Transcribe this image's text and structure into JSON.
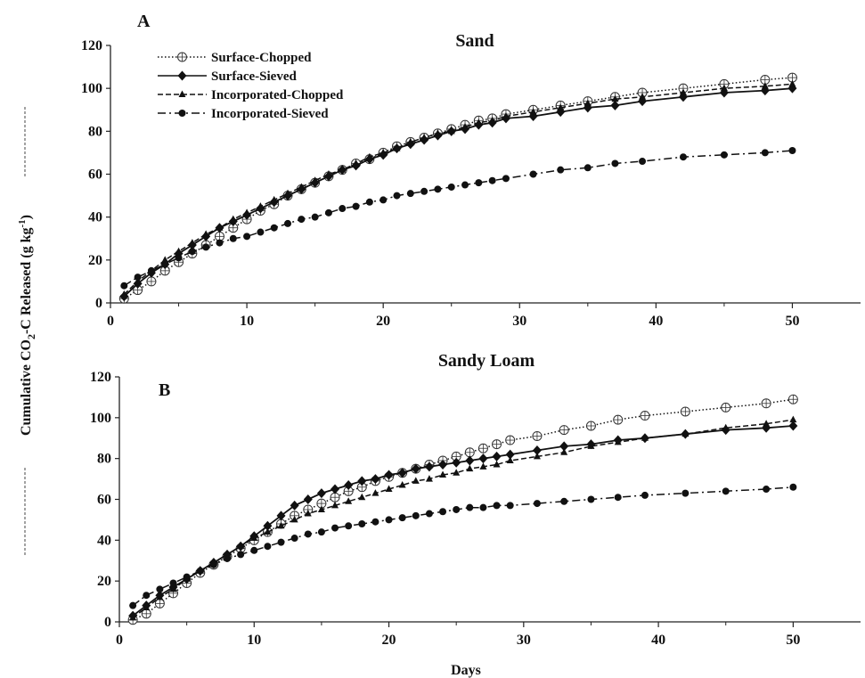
{
  "figure": {
    "ylabel": "Cumulative  CO2-C Released (g kg-1)",
    "ylabel_parts": {
      "pre": "Cumulative  CO",
      "sub": "2",
      "mid": "-C Released (g kg",
      "sup": "-1",
      "post": ")"
    },
    "xlabel": "Days",
    "colors": {
      "series": "#111111",
      "background": "#ffffff"
    }
  },
  "legend": {
    "placement": "top-left of panel A",
    "entries": [
      {
        "key": "surface_chopped",
        "label": "Surface-Chopped"
      },
      {
        "key": "surface_sieved",
        "label": "Surface-Sieved"
      },
      {
        "key": "incorporated_chopped",
        "label": "Incorporated-Chopped"
      },
      {
        "key": "incorporated_sieved",
        "label": "Incorporated-Sieved"
      }
    ]
  },
  "chart_data": [
    {
      "type": "line",
      "panel": "A",
      "title": "Sand",
      "xlabel": "Days",
      "ylabel": "Cumulative CO2-C Released (g kg-1)",
      "xlim": [
        0,
        55
      ],
      "ylim": [
        0,
        120
      ],
      "xticks": [
        0,
        10,
        20,
        30,
        40,
        50
      ],
      "yticks": [
        0,
        20,
        40,
        60,
        80,
        100,
        120
      ],
      "grid": false,
      "legend": "top-left",
      "series": [
        {
          "key": "surface_chopped",
          "name": "Surface-Chopped",
          "marker": "open-circle",
          "line": "dotted",
          "x": [
            1,
            2,
            3,
            4,
            5,
            6,
            7,
            8,
            9,
            10,
            11,
            12,
            13,
            14,
            15,
            16,
            17,
            18,
            19,
            20,
            21,
            22,
            23,
            24,
            25,
            26,
            27,
            28,
            29,
            31,
            33,
            35,
            37,
            39,
            42,
            45,
            48,
            50
          ],
          "y": [
            2,
            6,
            10,
            15,
            19,
            23,
            27,
            31,
            35,
            39,
            43,
            46,
            50,
            53,
            56,
            59,
            62,
            65,
            67,
            70,
            73,
            75,
            77,
            79,
            81,
            83,
            85,
            86,
            88,
            90,
            92,
            94,
            96,
            98,
            100,
            102,
            104,
            105
          ]
        },
        {
          "key": "surface_sieved",
          "name": "Surface-Sieved",
          "marker": "diamond",
          "line": "solid",
          "x": [
            1,
            2,
            3,
            4,
            5,
            6,
            7,
            8,
            9,
            10,
            11,
            12,
            13,
            14,
            15,
            16,
            17,
            18,
            19,
            20,
            21,
            22,
            23,
            24,
            25,
            26,
            27,
            28,
            29,
            31,
            33,
            35,
            37,
            39,
            42,
            45,
            48,
            50
          ],
          "y": [
            3,
            9,
            14,
            18,
            23,
            27,
            31,
            35,
            38,
            41,
            44,
            47,
            50,
            53,
            56,
            59,
            62,
            64,
            67,
            69,
            72,
            74,
            76,
            78,
            80,
            81,
            83,
            84,
            86,
            87,
            89,
            91,
            92,
            94,
            96,
            98,
            99,
            100
          ]
        },
        {
          "key": "incorporated_chopped",
          "name": "Incorporated-Chopped",
          "marker": "triangle",
          "line": "dashed",
          "x": [
            1,
            2,
            3,
            4,
            5,
            6,
            7,
            8,
            9,
            10,
            11,
            12,
            13,
            14,
            15,
            16,
            17,
            18,
            19,
            20,
            21,
            22,
            23,
            24,
            25,
            26,
            27,
            28,
            29,
            31,
            33,
            35,
            37,
            39,
            42,
            45,
            48,
            50
          ],
          "y": [
            4,
            10,
            15,
            20,
            24,
            28,
            32,
            35,
            39,
            42,
            45,
            48,
            51,
            54,
            57,
            60,
            62,
            65,
            68,
            70,
            72,
            75,
            77,
            79,
            80,
            82,
            84,
            85,
            87,
            89,
            91,
            93,
            95,
            96,
            98,
            100,
            101,
            102
          ]
        },
        {
          "key": "incorporated_sieved",
          "name": "Incorporated-Sieved",
          "marker": "filled-circle",
          "line": "dash-dot",
          "x": [
            1,
            2,
            3,
            4,
            5,
            6,
            7,
            8,
            9,
            10,
            11,
            12,
            13,
            14,
            15,
            16,
            17,
            18,
            19,
            20,
            21,
            22,
            23,
            24,
            25,
            26,
            27,
            28,
            29,
            31,
            33,
            35,
            37,
            39,
            42,
            45,
            48,
            50
          ],
          "y": [
            8,
            12,
            15,
            18,
            21,
            24,
            26,
            28,
            30,
            31,
            33,
            35,
            37,
            39,
            40,
            42,
            44,
            45,
            47,
            48,
            50,
            51,
            52,
            53,
            54,
            55,
            56,
            57,
            58,
            60,
            62,
            63,
            65,
            66,
            68,
            69,
            70,
            71
          ]
        }
      ]
    },
    {
      "type": "line",
      "panel": "B",
      "title": "Sandy Loam",
      "xlabel": "Days",
      "ylabel": "Cumulative CO2-C Released (g kg-1)",
      "xlim": [
        0,
        55
      ],
      "ylim": [
        0,
        120
      ],
      "xticks": [
        0,
        10,
        20,
        30,
        40,
        50
      ],
      "yticks": [
        0,
        20,
        40,
        60,
        80,
        100,
        120
      ],
      "grid": false,
      "series": [
        {
          "key": "surface_chopped",
          "name": "Surface-Chopped",
          "marker": "open-circle",
          "line": "dotted",
          "x": [
            1,
            2,
            3,
            4,
            5,
            6,
            7,
            8,
            9,
            10,
            11,
            12,
            13,
            14,
            15,
            16,
            17,
            18,
            19,
            20,
            21,
            22,
            23,
            24,
            25,
            26,
            27,
            28,
            29,
            31,
            33,
            35,
            37,
            39,
            42,
            45,
            48,
            50
          ],
          "y": [
            1,
            4,
            9,
            14,
            19,
            24,
            28,
            32,
            36,
            40,
            44,
            48,
            52,
            55,
            58,
            61,
            64,
            66,
            69,
            71,
            73,
            75,
            77,
            79,
            81,
            83,
            85,
            87,
            89,
            91,
            94,
            96,
            99,
            101,
            103,
            105,
            107,
            109
          ]
        },
        {
          "key": "surface_sieved",
          "name": "Surface-Sieved",
          "marker": "diamond",
          "line": "solid",
          "x": [
            1,
            2,
            3,
            4,
            5,
            6,
            7,
            8,
            9,
            10,
            11,
            12,
            13,
            14,
            15,
            16,
            17,
            18,
            19,
            20,
            21,
            22,
            23,
            24,
            25,
            26,
            27,
            28,
            29,
            31,
            33,
            35,
            37,
            39,
            42,
            45,
            48,
            50
          ],
          "y": [
            3,
            8,
            13,
            17,
            21,
            25,
            29,
            33,
            37,
            42,
            47,
            52,
            57,
            60,
            63,
            65,
            67,
            69,
            70,
            72,
            73,
            75,
            76,
            77,
            78,
            79,
            80,
            81,
            82,
            84,
            86,
            87,
            89,
            90,
            92,
            94,
            95,
            96
          ]
        },
        {
          "key": "incorporated_chopped",
          "name": "Incorporated-Chopped",
          "marker": "triangle",
          "line": "dashed",
          "x": [
            1,
            2,
            3,
            4,
            5,
            6,
            7,
            8,
            9,
            10,
            11,
            12,
            13,
            14,
            15,
            16,
            17,
            18,
            19,
            20,
            21,
            22,
            23,
            24,
            25,
            26,
            27,
            28,
            29,
            31,
            33,
            35,
            37,
            39,
            42,
            45,
            48,
            50
          ],
          "y": [
            2,
            7,
            12,
            16,
            21,
            25,
            29,
            33,
            37,
            41,
            44,
            47,
            50,
            53,
            55,
            57,
            59,
            61,
            63,
            65,
            67,
            69,
            70,
            72,
            73,
            75,
            76,
            77,
            79,
            81,
            83,
            86,
            88,
            90,
            92,
            95,
            97,
            99
          ]
        },
        {
          "key": "incorporated_sieved",
          "name": "Incorporated-Sieved",
          "marker": "filled-circle",
          "line": "dash-dot",
          "x": [
            1,
            2,
            3,
            4,
            5,
            6,
            7,
            8,
            9,
            10,
            11,
            12,
            13,
            14,
            15,
            16,
            17,
            18,
            19,
            20,
            21,
            22,
            23,
            24,
            25,
            26,
            27,
            28,
            29,
            31,
            33,
            35,
            37,
            39,
            42,
            45,
            48,
            50
          ],
          "y": [
            8,
            13,
            16,
            19,
            22,
            25,
            28,
            31,
            33,
            35,
            37,
            39,
            41,
            43,
            44,
            46,
            47,
            48,
            49,
            50,
            51,
            52,
            53,
            54,
            55,
            56,
            56,
            57,
            57,
            58,
            59,
            60,
            61,
            62,
            63,
            64,
            65,
            66
          ]
        }
      ]
    }
  ]
}
